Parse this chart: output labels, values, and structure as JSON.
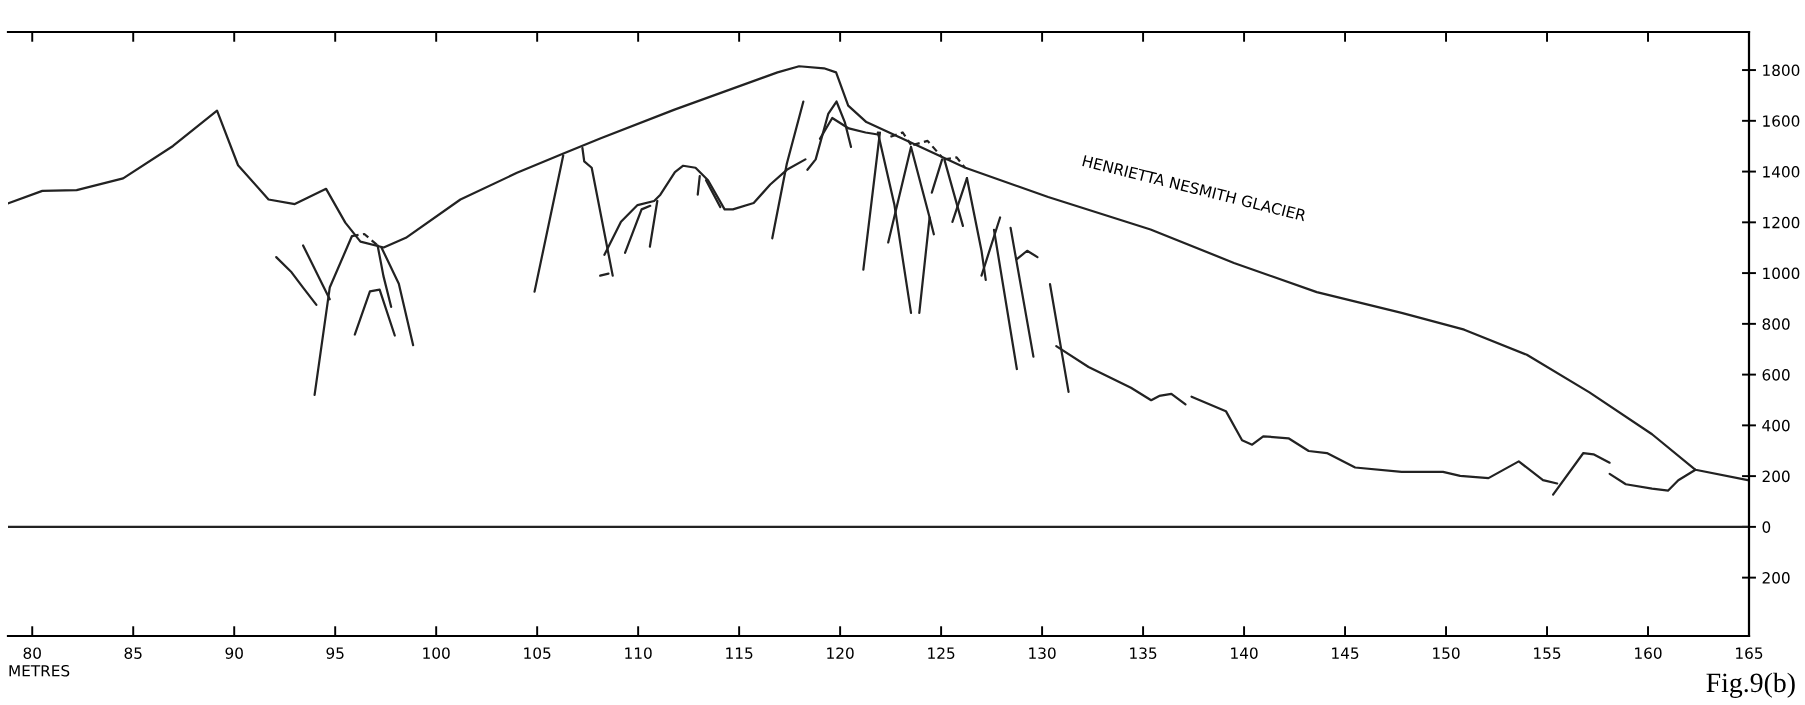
{
  "chart_data": {
    "type": "line",
    "xlabel": "METRES",
    "annotations": [
      "HENRIETTA NESMITH GLACIER",
      "Fig.9(b)"
    ],
    "xlim": [
      78.8,
      165
    ],
    "ylim": [
      -430,
      1950
    ],
    "xticks": [
      80,
      85,
      90,
      95,
      100,
      105,
      110,
      115,
      120,
      125,
      130,
      135,
      140,
      145,
      150,
      155,
      160,
      165
    ],
    "yticks": [
      {
        "value": -200,
        "label": "200"
      },
      0,
      200,
      400,
      600,
      800,
      1000,
      1200,
      1400,
      1600,
      1800
    ],
    "ref_lines": [
      {
        "axis": "y",
        "value": 0,
        "color": "#222222"
      }
    ],
    "series": [
      {
        "color": "#222222",
        "x": [
          78.82,
          80.5,
          82.2,
          84.5,
          86.97,
          89.15,
          90.19,
          91.7,
          93.0,
          94.55,
          95.5,
          96.25,
          97.4,
          98.5,
          101.2,
          104.0,
          106.3,
          108.15,
          111.8,
          116.9,
          117.97,
          119.2,
          119.8,
          120.4,
          121.3,
          123.1,
          126.2,
          130.3,
          135.37,
          139.5,
          143.6,
          147.8,
          150.9,
          154.0,
          157.1,
          160.2,
          162.35,
          164.94
        ],
        "values": [
          1275,
          1324,
          1327,
          1373,
          1501,
          1640,
          1425,
          1290,
          1272,
          1332,
          1199,
          1124,
          1101,
          1139,
          1290,
          1395,
          1471,
          1531,
          1644,
          1791,
          1815,
          1807,
          1791,
          1660,
          1595,
          1529,
          1415,
          1300,
          1172,
          1040,
          925,
          843,
          777,
          678,
          530,
          365,
          225,
          184
        ]
      },
      {
        "color": "#222222",
        "x": [
          130.7,
          132.3,
          134.4,
          135.4,
          135.8,
          136.4,
          137.1
        ],
        "values": [
          712,
          630,
          548,
          499,
          516,
          524,
          483
        ]
      },
      {
        "color": "#222222",
        "x": [
          137.4,
          139.1,
          139.9,
          140.4,
          140.95,
          142.2,
          143.2,
          144.1,
          145.5,
          147.8,
          149.85,
          150.7,
          152.1,
          153.6,
          154.8,
          155.5
        ],
        "values": [
          513,
          456,
          341,
          324,
          357,
          349,
          299,
          291,
          234,
          217,
          217,
          201,
          192,
          258,
          184,
          171
        ]
      },
      {
        "color": "#222222",
        "x": [
          155.3,
          156.8,
          157.3,
          158.1
        ],
        "values": [
          127,
          291,
          286,
          253
        ]
      },
      {
        "color": "#222222",
        "x": [
          158.1,
          158.9,
          160.2,
          161.0,
          161.5,
          162.35
        ],
        "values": [
          209,
          168,
          151,
          143,
          184,
          225
        ]
      },
      {
        "color": "#222222",
        "x": [
          92.08,
          92.84,
          93.41,
          94.07
        ],
        "values": [
          1063,
          1003,
          943,
          875
        ]
      },
      {
        "color": "#222222",
        "x": [
          93.41,
          94.73
        ],
        "values": [
          1109,
          897
        ]
      },
      {
        "color": "#222222",
        "x": [
          95.83,
          94.73,
          93.98
        ],
        "values": [
          1146,
          943,
          520
        ]
      },
      {
        "color": "#222222",
        "x": [
          95.97,
          96.72,
          97.2,
          97.95
        ],
        "values": [
          758,
          928,
          935,
          754
        ]
      },
      {
        "color": "#222222",
        "x": [
          97.1,
          97.39,
          97.77
        ],
        "values": [
          1109,
          988,
          867
        ]
      },
      {
        "color": "#222222",
        "x": [
          97.29,
          98.15,
          98.86
        ],
        "values": [
          1101,
          958,
          716
        ]
      },
      {
        "color": "#222222",
        "line_style": "dashed",
        "x": [
          95.83,
          96.44,
          97.1
        ],
        "values": [
          1146,
          1154,
          1109
        ]
      },
      {
        "color": "#222222",
        "x": [
          106.29,
          104.87
        ],
        "values": [
          1463,
          927
        ]
      },
      {
        "color": "#222222",
        "x": [
          107.24,
          107.33,
          107.7,
          108.74
        ],
        "values": [
          1493,
          1440,
          1415,
          990
        ]
      },
      {
        "color": "#222222",
        "x": [
          108.12,
          108.53
        ],
        "values": [
          990,
          998
        ]
      },
      {
        "color": "#222222",
        "x": [
          108.33,
          109.15,
          109.97,
          110.79,
          111.1,
          111.82,
          112.23,
          112.84,
          113.46,
          114.28,
          114.69,
          115.72,
          116.54,
          117.36,
          118.28
        ],
        "values": [
          1072,
          1202,
          1268,
          1284,
          1309,
          1398,
          1423,
          1415,
          1366,
          1251,
          1251,
          1276,
          1349,
          1407,
          1448
        ]
      },
      {
        "color": "#222222",
        "x": [
          109.35,
          110.17,
          110.6
        ],
        "values": [
          1080,
          1251,
          1265
        ]
      },
      {
        "color": "#222222",
        "x": [
          110.58,
          110.95
        ],
        "values": [
          1104,
          1285
        ]
      },
      {
        "color": "#222222",
        "x": [
          112.95,
          113.05
        ],
        "values": [
          1309,
          1382
        ]
      },
      {
        "color": "#222222",
        "x": [
          113.36,
          114.07
        ],
        "values": [
          1366,
          1260
        ]
      },
      {
        "color": "#222222",
        "x": [
          116.64,
          117.36,
          118.18
        ],
        "values": [
          1137,
          1431,
          1676
        ]
      },
      {
        "color": "#222222",
        "x": [
          118.38,
          118.79,
          119.41,
          119.82,
          120.23,
          120.54
        ],
        "values": [
          1407,
          1448,
          1627,
          1676,
          1595,
          1497
        ]
      },
      {
        "color": "#222222",
        "x": [
          119.0,
          119.61,
          120.43,
          121.26,
          121.87
        ],
        "values": [
          1529,
          1611,
          1570,
          1554,
          1546
        ]
      },
      {
        "color": "#222222",
        "x": [
          121.97,
          121.15
        ],
        "values": [
          1554,
          1014
        ]
      },
      {
        "color": "#222222",
        "x": [
          121.87,
          122.69,
          123.51
        ],
        "values": [
          1554,
          1268,
          843
        ]
      },
      {
        "color": "#222222",
        "x": [
          123.51,
          122.38
        ],
        "values": [
          1497,
          1121
        ]
      },
      {
        "color": "#222222",
        "x": [
          123.51,
          124.43,
          124.64
        ],
        "values": [
          1497,
          1219,
          1153
        ]
      },
      {
        "color": "#222222",
        "x": [
          124.43,
          123.92
        ],
        "values": [
          1219,
          843
        ]
      },
      {
        "color": "#222222",
        "x": [
          125.05,
          124.54
        ],
        "values": [
          1448,
          1317
        ]
      },
      {
        "color": "#222222",
        "x": [
          125.16,
          126.08
        ],
        "values": [
          1448,
          1186
        ]
      },
      {
        "color": "#222222",
        "x": [
          126.28,
          125.56
        ],
        "values": [
          1374,
          1202
        ]
      },
      {
        "color": "#222222",
        "x": [
          126.28,
          127.0,
          127.21
        ],
        "values": [
          1374,
          1088,
          973
        ]
      },
      {
        "color": "#222222",
        "x": [
          127.92,
          127.0
        ],
        "values": [
          1219,
          990
        ]
      },
      {
        "color": "#222222",
        "x": [
          127.62,
          128.75
        ],
        "values": [
          1170,
          622
        ]
      },
      {
        "color": "#222222",
        "x": [
          128.44,
          129.57
        ],
        "values": [
          1178,
          671
        ]
      },
      {
        "color": "#222222",
        "x": [
          128.75,
          129.26,
          129.77
        ],
        "values": [
          1055,
          1088,
          1063
        ]
      },
      {
        "color": "#222222",
        "x": [
          130.39,
          131.31
        ],
        "values": [
          957,
          532
        ]
      },
      {
        "color": "#222222",
        "line_style": "dashed",
        "x": [
          122.49,
          123.1,
          123.51
        ],
        "values": [
          1537,
          1554,
          1505
        ]
      },
      {
        "color": "#222222",
        "line_style": "dashed",
        "x": [
          123.62,
          124.33,
          125.05
        ],
        "values": [
          1505,
          1521,
          1456
        ]
      },
      {
        "color": "#222222",
        "line_style": "dashed",
        "x": [
          125.16,
          125.77,
          126.18
        ],
        "values": [
          1448,
          1456,
          1415
        ]
      }
    ]
  }
}
